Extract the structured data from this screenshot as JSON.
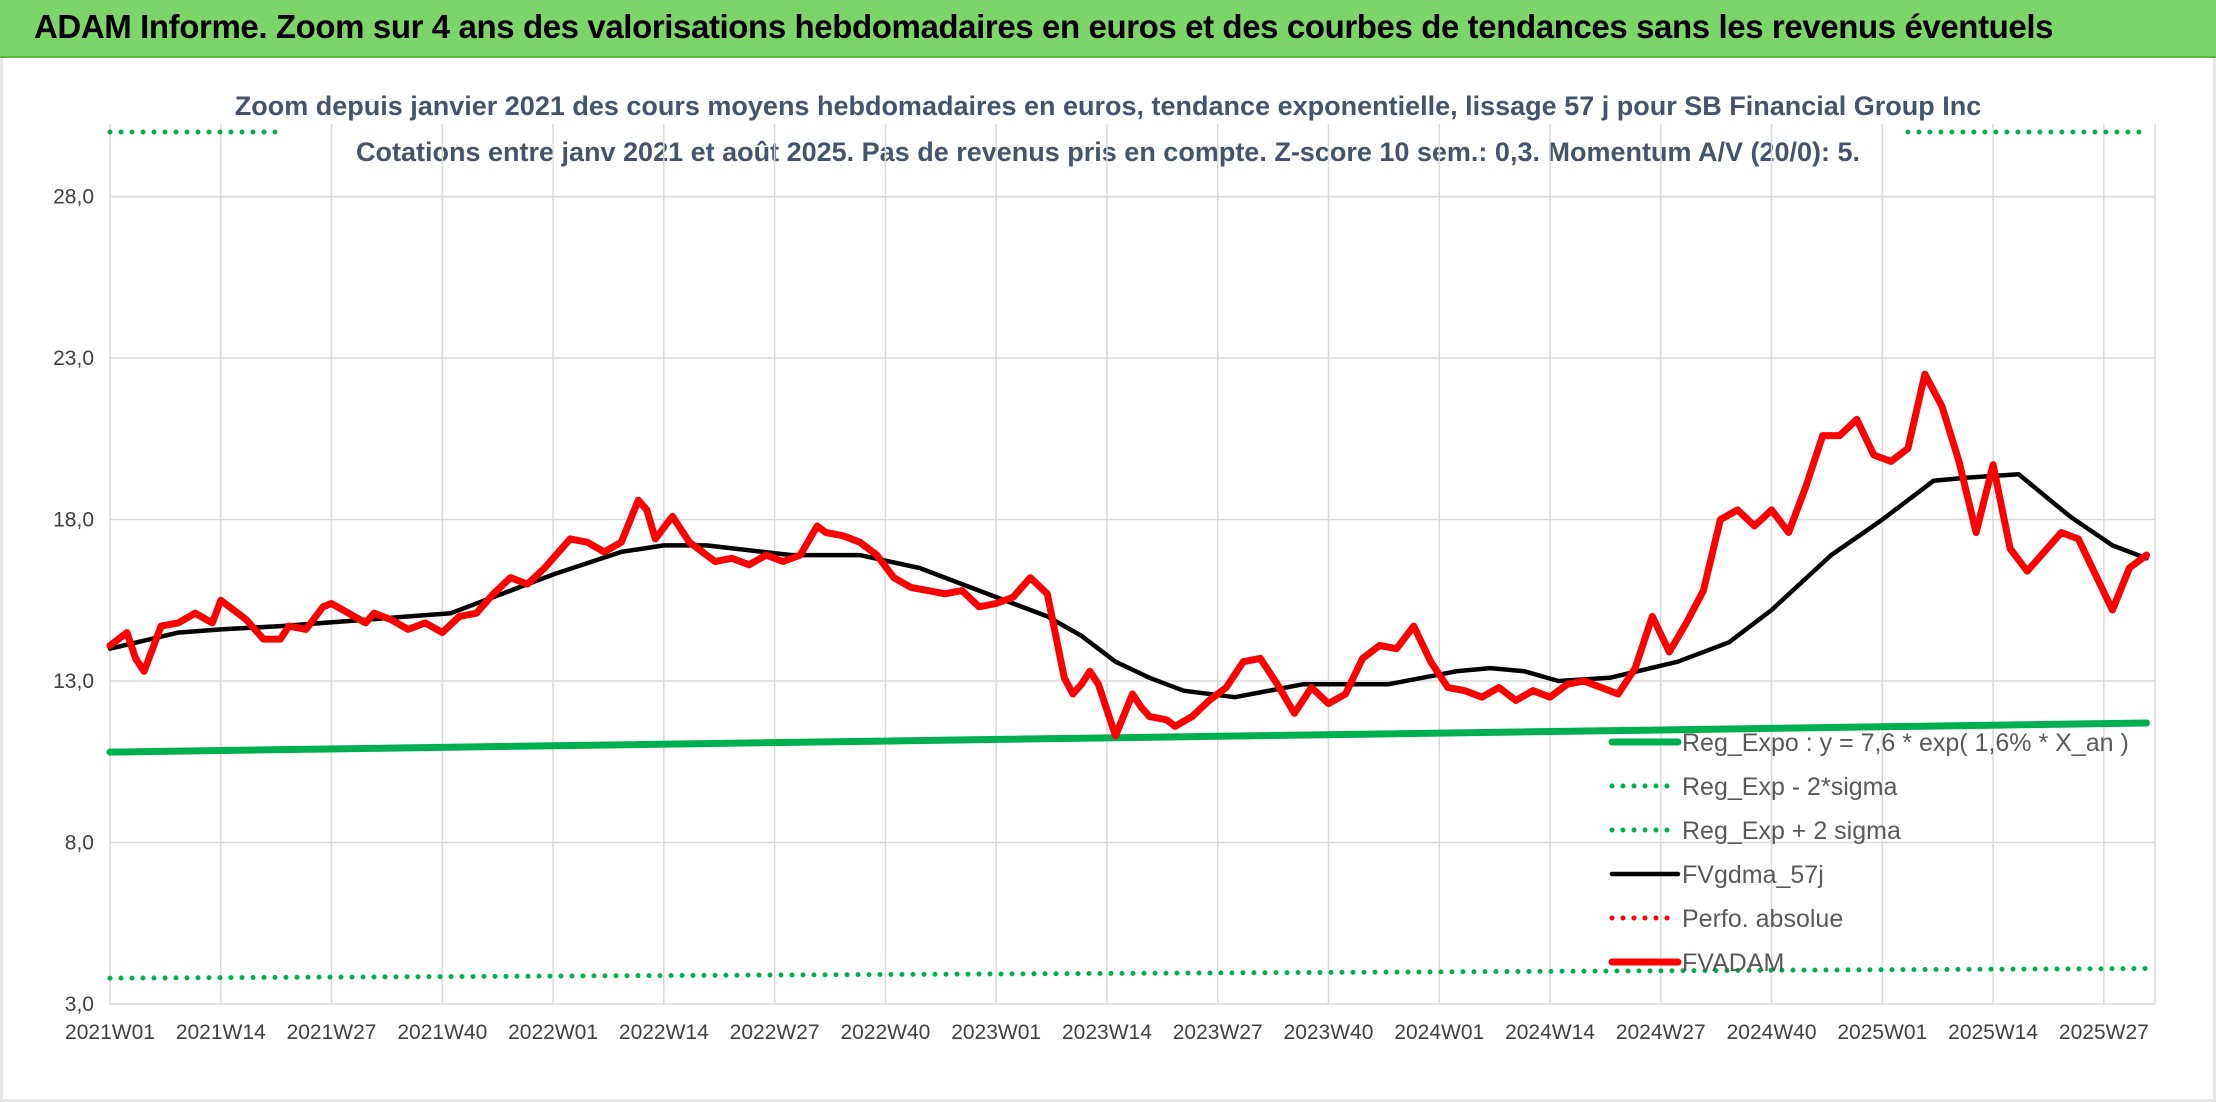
{
  "header": {
    "title": "ADAM Informe. Zoom sur 4 ans des valorisations hebdomadaires en euros et des courbes de tendances sans les revenus éventuels"
  },
  "colors": {
    "header_bg": "#7dd46a",
    "trend_green": "#00b050",
    "fvgdma_black": "#000000",
    "fvadam_red": "#ff0000",
    "perfo_red": "#ff0000",
    "subtitle_text": "#44546a",
    "grid": "#d9d9d9"
  },
  "chart_data": {
    "type": "line",
    "title": "Zoom depuis janvier 2021 des cours moyens hebdomadaires en euros, tendance exponentielle, lissage 57 j pour SB Financial Group Inc",
    "subtitle": "Cotations entre janv 2021 et août 2025. Pas de revenus pris en compte. Z-score 10 sem.: 0,3. Momentum A/V (20/0): 5.",
    "xlabel": "",
    "ylabel": "",
    "ylim": [
      3,
      30
    ],
    "y_ticks": [
      "3,0",
      "8,0",
      "13,0",
      "18,0",
      "23,0",
      "28,0"
    ],
    "y_tick_values": [
      3,
      8,
      13,
      18,
      23,
      28
    ],
    "x_ticks": [
      "2021W01",
      "2021W14",
      "2021W27",
      "2021W40",
      "2022W01",
      "2022W14",
      "2022W27",
      "2022W40",
      "2023W01",
      "2023W14",
      "2023W27",
      "2023W40",
      "2024W01",
      "2024W14",
      "2024W27",
      "2024W40",
      "2025W01",
      "2025W14",
      "2025W27"
    ],
    "x_tick_index": [
      0,
      13,
      26,
      39,
      52,
      65,
      78,
      91,
      104,
      117,
      130,
      143,
      156,
      169,
      182,
      195,
      208,
      221,
      234
    ],
    "n_weeks": 240,
    "grid": true,
    "legend_position": "bottom-right",
    "series": [
      {
        "name": "Reg_Expo : y = 7,6 * exp( 1,6% *  X_an )",
        "style": "solid",
        "color": "#00b050",
        "x_index": [
          0,
          239
        ],
        "values": [
          10.8,
          11.7
        ]
      },
      {
        "name": "Reg_Exp - 2*sigma",
        "style": "dotted",
        "color": "#00b050",
        "x_index": [
          0,
          239
        ],
        "values": [
          3.8,
          4.1
        ]
      },
      {
        "name": "Reg_Exp + 2 sigma",
        "style": "dotted",
        "color": "#00b050",
        "x_index": [
          0,
          20,
          211,
          239
        ],
        "values": [
          30.0,
          30.0,
          30.0,
          30.0
        ],
        "segments": [
          [
            0,
            20
          ],
          [
            211,
            239
          ]
        ]
      },
      {
        "name": "FVgdma_57j",
        "style": "solid",
        "color": "#000000",
        "x_index": [
          0,
          8,
          13,
          20,
          30,
          40,
          52,
          60,
          65,
          70,
          80,
          88,
          95,
          104,
          110,
          114,
          118,
          122,
          126,
          132,
          140,
          150,
          158,
          162,
          166,
          170,
          176,
          184,
          190,
          195,
          202,
          208,
          214,
          218,
          224,
          230,
          235,
          239
        ],
        "values": [
          14.0,
          14.5,
          14.6,
          14.7,
          14.9,
          15.1,
          16.3,
          17.0,
          17.2,
          17.2,
          16.9,
          16.9,
          16.5,
          15.6,
          15.0,
          14.4,
          13.6,
          13.1,
          12.7,
          12.5,
          12.9,
          12.9,
          13.3,
          13.4,
          13.3,
          13.0,
          13.1,
          13.6,
          14.2,
          15.2,
          16.9,
          18.0,
          19.2,
          19.3,
          19.4,
          18.1,
          17.2,
          16.8
        ]
      },
      {
        "name": "Perfo. absolue",
        "style": "dotted",
        "color": "#ff0000",
        "x_index": [],
        "values": []
      },
      {
        "name": "FVADAM",
        "style": "solid",
        "color": "#ff0000",
        "x_index": [
          0,
          2,
          3,
          4,
          6,
          8,
          10,
          12,
          13,
          15,
          16,
          18,
          20,
          21,
          23,
          25,
          26,
          28,
          30,
          31,
          33,
          35,
          37,
          39,
          41,
          43,
          45,
          47,
          49,
          51,
          52,
          54,
          56,
          58,
          60,
          62,
          63,
          64,
          66,
          68,
          70,
          71,
          73,
          75,
          77,
          79,
          81,
          83,
          84,
          86,
          88,
          90,
          92,
          94,
          96,
          98,
          100,
          102,
          104,
          106,
          108,
          110,
          112,
          113,
          114,
          115,
          116,
          118,
          120,
          121,
          122,
          124,
          125,
          127,
          129,
          131,
          133,
          135,
          137,
          139,
          141,
          143,
          145,
          147,
          149,
          151,
          153,
          155,
          157,
          159,
          161,
          163,
          165,
          167,
          169,
          171,
          173,
          175,
          177,
          179,
          181,
          183,
          185,
          187,
          189,
          191,
          193,
          195,
          197,
          199,
          201,
          203,
          205,
          207,
          209,
          211,
          213,
          215,
          217,
          219,
          221,
          223,
          225,
          227,
          229,
          231,
          233,
          235,
          237,
          239
        ],
        "values": [
          14.1,
          14.5,
          13.7,
          13.3,
          14.7,
          14.8,
          15.1,
          14.8,
          15.5,
          15.1,
          14.9,
          14.3,
          14.3,
          14.7,
          14.6,
          15.3,
          15.4,
          15.1,
          14.8,
          15.1,
          14.9,
          14.6,
          14.8,
          14.5,
          15.0,
          15.1,
          15.7,
          16.2,
          16.0,
          16.5,
          16.8,
          17.4,
          17.3,
          17.0,
          17.3,
          18.6,
          18.3,
          17.4,
          18.1,
          17.3,
          16.9,
          16.7,
          16.8,
          16.6,
          16.9,
          16.7,
          16.9,
          17.8,
          17.6,
          17.5,
          17.3,
          16.9,
          16.2,
          15.9,
          15.8,
          15.7,
          15.8,
          15.3,
          15.4,
          15.6,
          16.2,
          15.7,
          13.1,
          12.6,
          12.9,
          13.3,
          12.9,
          11.3,
          12.6,
          12.2,
          11.9,
          11.8,
          11.6,
          11.9,
          12.4,
          12.8,
          13.6,
          13.7,
          12.9,
          12.0,
          12.8,
          12.3,
          12.6,
          13.7,
          14.1,
          14.0,
          14.7,
          13.6,
          12.8,
          12.7,
          12.5,
          12.8,
          12.4,
          12.7,
          12.5,
          12.9,
          13.0,
          12.8,
          12.6,
          13.4,
          15.0,
          13.9,
          14.8,
          15.8,
          18.0,
          18.3,
          17.8,
          18.3,
          17.6,
          19.0,
          20.6,
          20.6,
          21.1,
          20.0,
          19.8,
          20.2,
          22.5,
          21.5,
          19.8,
          17.6,
          19.7,
          17.1,
          16.4,
          17.0,
          17.6,
          17.4,
          16.3,
          15.2,
          16.5,
          16.9
        ]
      }
    ]
  }
}
